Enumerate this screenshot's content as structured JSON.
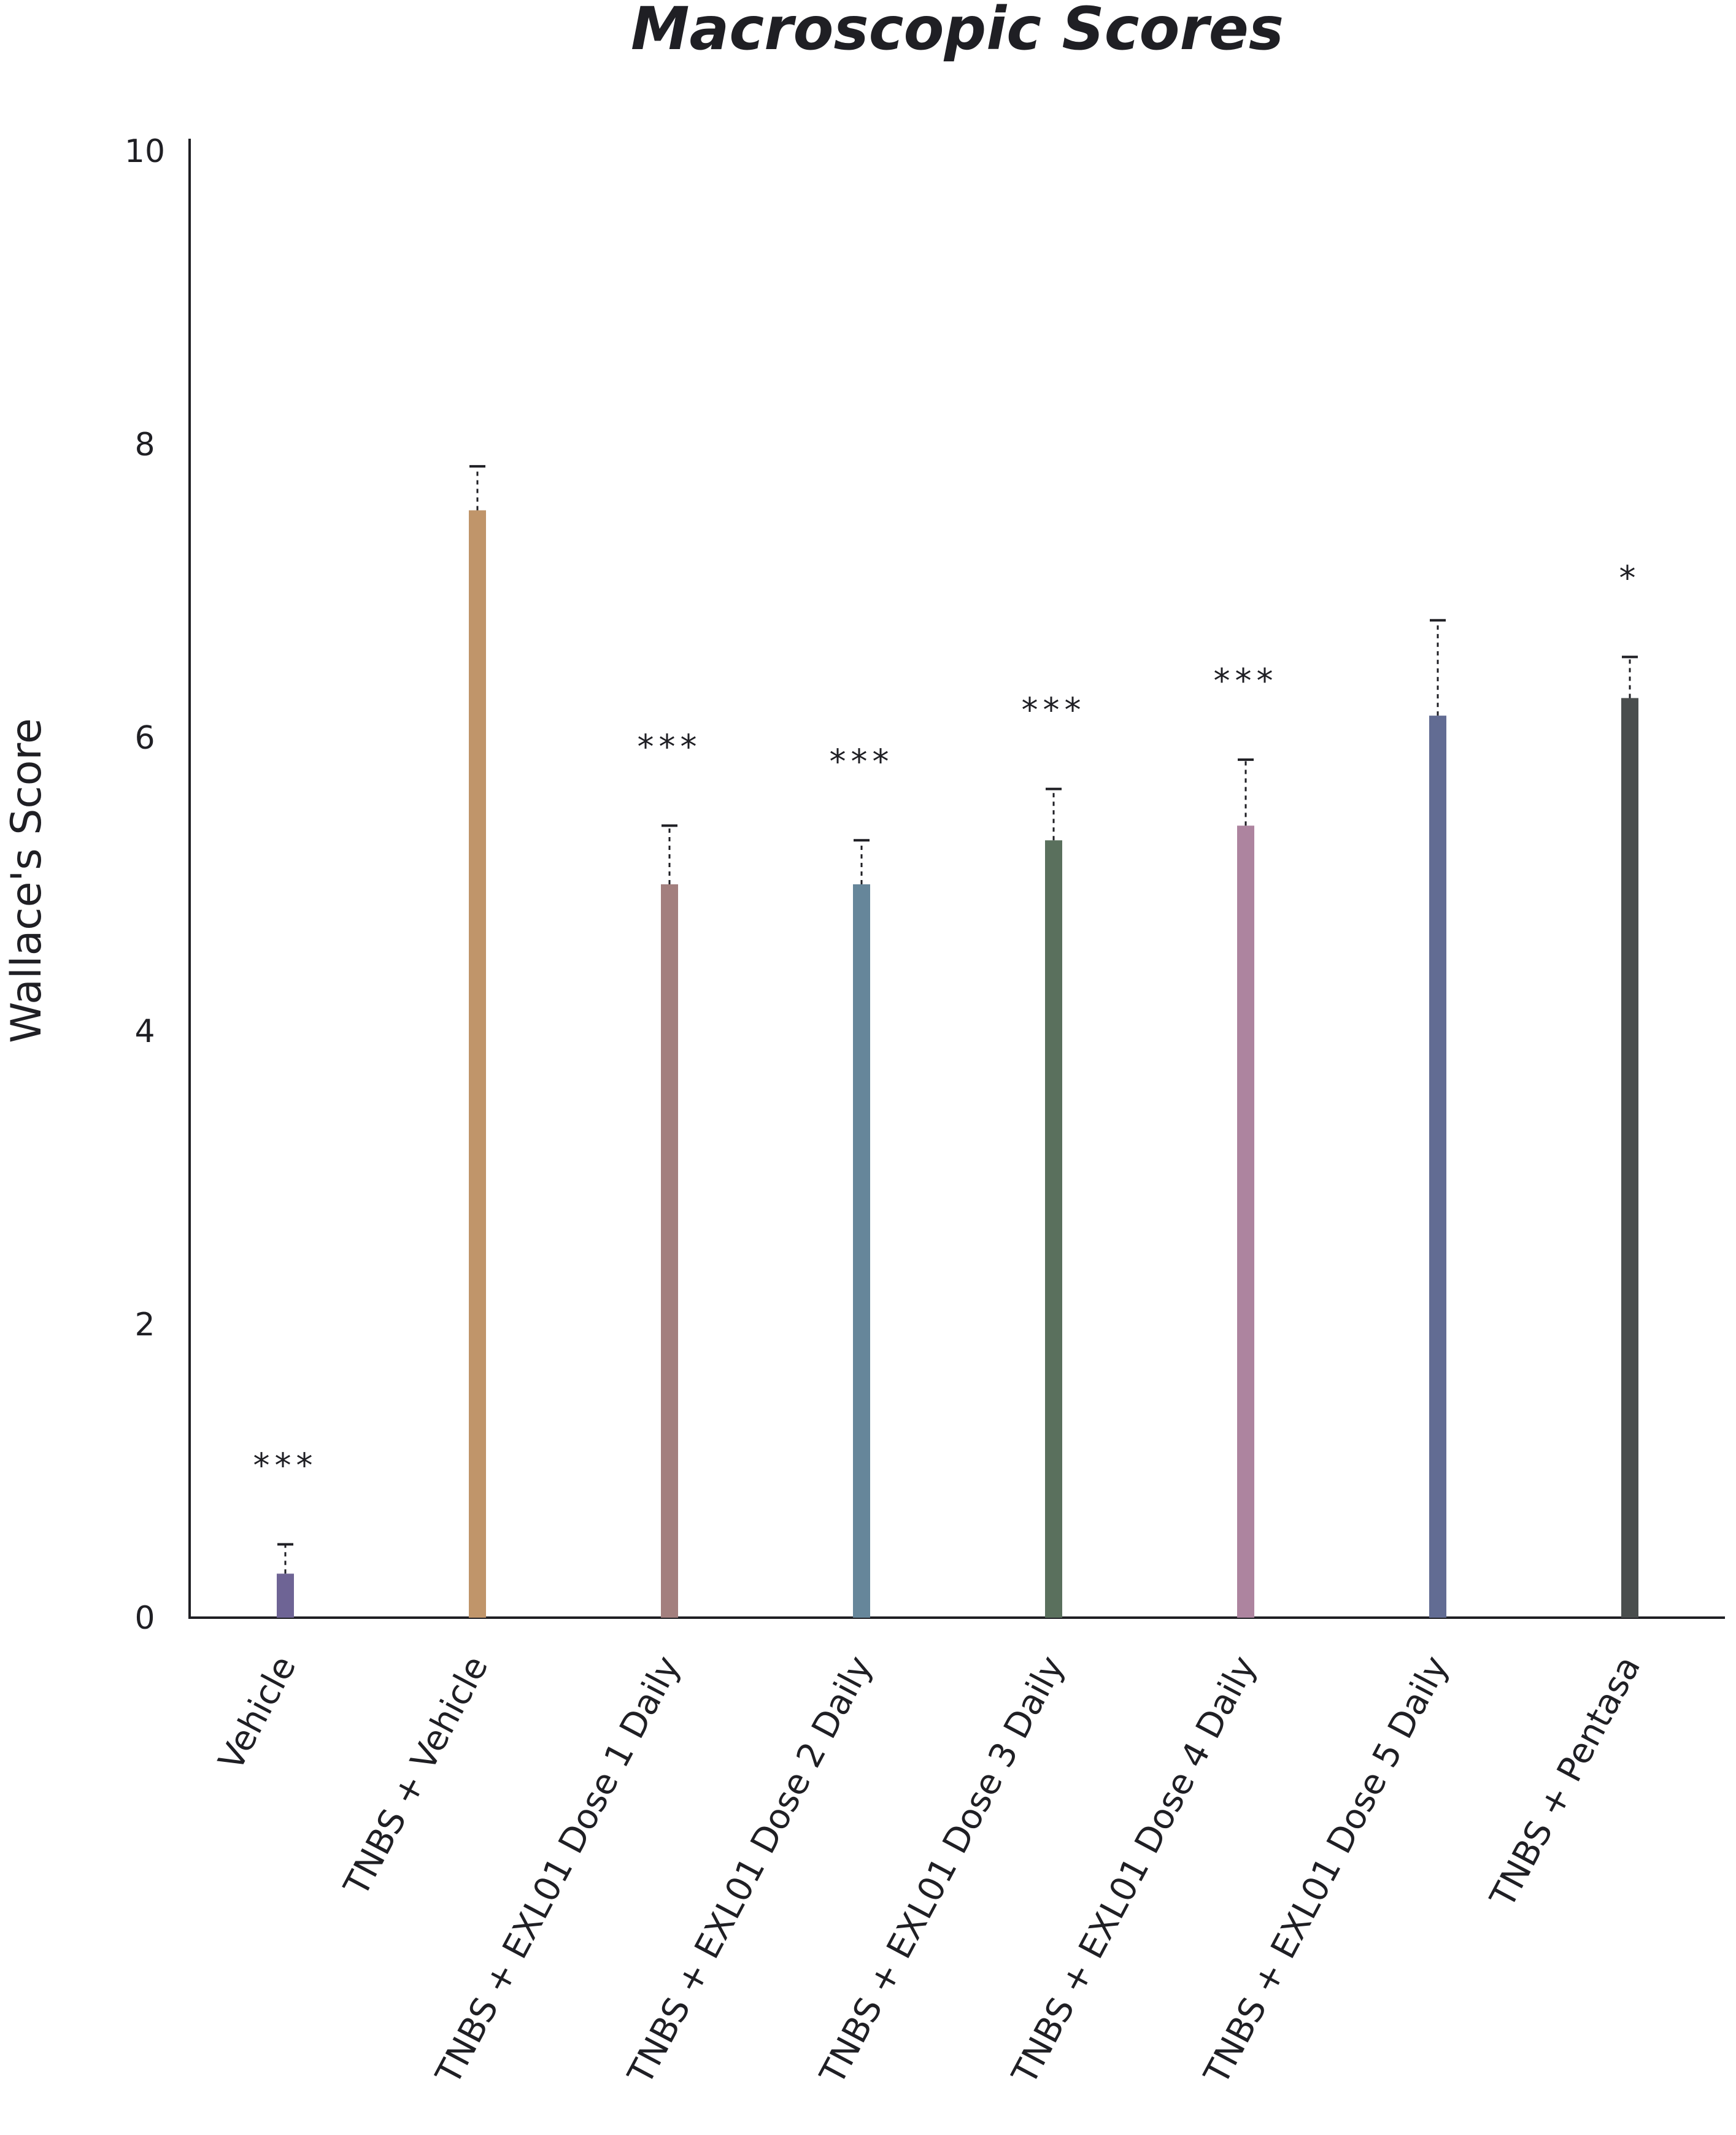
{
  "chart_data": {
    "type": "bar",
    "title": "Macroscopic Scores",
    "xlabel": "",
    "ylabel": "Wallace's Score",
    "ylim": [
      0,
      10
    ],
    "yticks": [
      "0",
      "2",
      "4",
      "6",
      "8",
      "10"
    ],
    "grid": false,
    "categories": [
      "Vehicle",
      "TNBS + Vehicle",
      "TNBS + EXL01 Dose 1 Daily",
      "TNBS + EXL01 Dose 2 Daily",
      "TNBS + EXL01 Dose 3 Daily",
      "TNBS + EXL01 Dose 4 Daily",
      "TNBS + EXL01 Dose 5 Daily",
      "TNBS + Pentasa"
    ],
    "values": [
      0.3,
      7.55,
      5.0,
      5.0,
      5.3,
      5.4,
      6.15,
      6.27
    ],
    "error_upper": [
      0.5,
      7.85,
      5.4,
      5.3,
      5.65,
      5.85,
      6.8,
      6.55
    ],
    "significance": [
      "***",
      "",
      "***",
      "***",
      "***",
      "***",
      "",
      "*"
    ],
    "colors": [
      "#6e6495",
      "#c0956a",
      "#a37f7e",
      "#66869a",
      "#5a705d",
      "#ad849f",
      "#626c93",
      "#4a4e4e"
    ]
  }
}
